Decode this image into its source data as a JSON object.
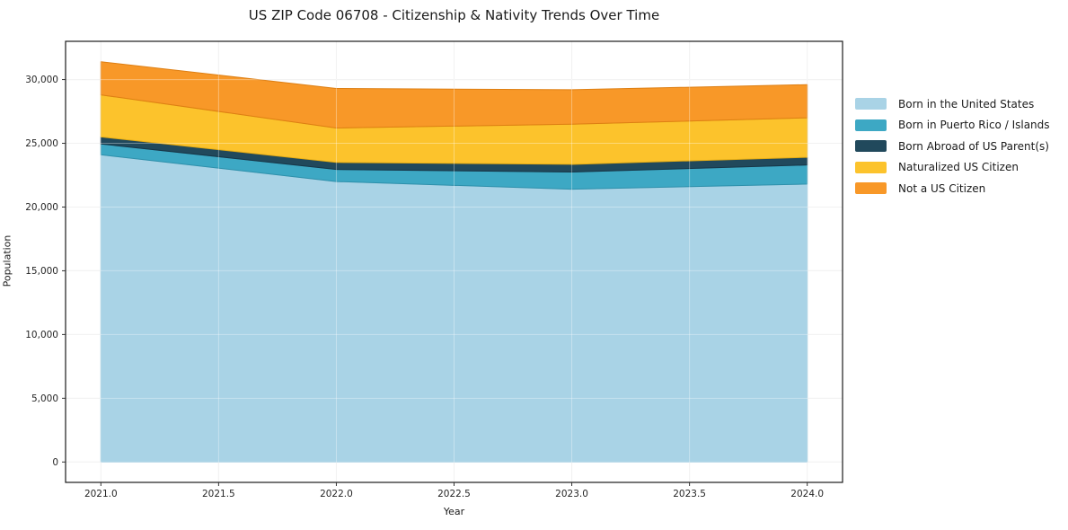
{
  "title": "US ZIP Code 06708 - Citizenship & Nativity Trends Over Time",
  "chart_data": {
    "type": "area",
    "stacked": true,
    "title": "US ZIP Code 06708 - Citizenship & Nativity Trends Over Time",
    "xlabel": "Year",
    "ylabel": "Population",
    "x": [
      2021,
      2022,
      2023,
      2024
    ],
    "series": [
      {
        "name": "Born in the United States",
        "color": "#A9D3E6",
        "edge": "#8FC3DB",
        "values": [
          24100,
          22000,
          21400,
          21800
        ]
      },
      {
        "name": "Born in Puerto Rico / Islands",
        "color": "#3DA8C4",
        "edge": "#2E90AB",
        "values": [
          850,
          950,
          1350,
          1500
        ]
      },
      {
        "name": "Born Abroad of US Parent(s)",
        "color": "#21495C",
        "edge": "#173647",
        "values": [
          550,
          550,
          600,
          600
        ]
      },
      {
        "name": "Naturalized US Citizen",
        "color": "#FCC32C",
        "edge": "#E5AC14",
        "values": [
          3300,
          2700,
          3150,
          3100
        ]
      },
      {
        "name": "Not a US Citizen",
        "color": "#F89828",
        "edge": "#DE7F13",
        "values": [
          2600,
          3100,
          2700,
          2600
        ]
      }
    ],
    "stacked_totals": [
      31400,
      29300,
      29200,
      29600
    ],
    "xlim": [
      2020.85,
      2024.15
    ],
    "ylim": [
      -1600,
      33000
    ],
    "x_ticks": {
      "values": [
        2021.0,
        2021.5,
        2022.0,
        2022.5,
        2023.0,
        2023.5,
        2024.0
      ],
      "labels": [
        "2021.0",
        "2021.5",
        "2022.0",
        "2022.5",
        "2023.0",
        "2023.5",
        "2024.0"
      ]
    },
    "y_ticks": {
      "values": [
        0,
        5000,
        10000,
        15000,
        20000,
        25000,
        30000
      ],
      "labels": [
        "0",
        "5,000",
        "10,000",
        "15,000",
        "20,000",
        "25,000",
        "30,000"
      ]
    },
    "grid": true,
    "legend_position": "center right, outside plot",
    "colors": {
      "grid_under": "#ebebeb",
      "grid_over": "rgba(255,255,255,0.35)",
      "spine": "#1a1a1a",
      "tick": "#333333",
      "background": "#ffffff"
    }
  }
}
